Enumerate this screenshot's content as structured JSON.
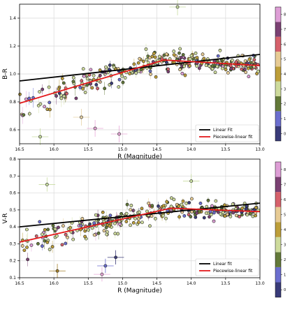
{
  "chart_data": [
    {
      "type": "scatter",
      "title": "",
      "xlabel": "R (Magnitude)",
      "ylabel": "B-R",
      "xlim": [
        16.5,
        13.0
      ],
      "ylim": [
        0.5,
        1.5
      ],
      "x_inverted": true,
      "grid": true,
      "legend_position": "lower-right",
      "xticks": [
        16.5,
        16.0,
        15.5,
        15.0,
        14.5,
        14.0,
        13.5,
        13.0
      ],
      "xtick_labels": [
        "16.5",
        "16.0",
        "15.5",
        "15.0",
        "14.5",
        "14.0",
        "13.5",
        "13.0"
      ],
      "yticks": [
        0.6,
        0.8,
        1.0,
        1.2,
        1.4
      ],
      "ytick_labels": [
        "0.6",
        "0.8",
        "1.0",
        "1.2",
        "1.4"
      ],
      "fits": [
        {
          "name": "Linear Fit",
          "color": "#000000",
          "x": [
            16.5,
            13.0
          ],
          "y": [
            0.95,
            1.14
          ]
        },
        {
          "name": "Piecewise-linear fit",
          "color": "#e41a1c",
          "x": [
            16.5,
            14.4,
            13.0
          ],
          "y": [
            0.79,
            1.1,
            1.06
          ]
        }
      ],
      "scatter_model": {
        "type": "piecewise",
        "x": [
          16.5,
          14.4,
          13.0
        ],
        "y": [
          0.79,
          1.1,
          1.06
        ],
        "scatter": 0.055,
        "n_points": 330
      },
      "outliers": [
        {
          "x": 15.4,
          "y": 0.61,
          "color": "#e8a8d8"
        },
        {
          "x": 15.05,
          "y": 0.57,
          "color": "#e8a8d8"
        },
        {
          "x": 14.2,
          "y": 1.48,
          "color": "#c8dca0"
        },
        {
          "x": 16.2,
          "y": 0.55,
          "color": "#c8dca0"
        },
        {
          "x": 15.6,
          "y": 0.69,
          "color": "#e7d3a8"
        }
      ]
    },
    {
      "type": "scatter",
      "title": "",
      "xlabel": "R (Magnitude)",
      "ylabel": "V-R",
      "xlim": [
        16.5,
        13.0
      ],
      "ylim": [
        0.1,
        0.8
      ],
      "x_inverted": true,
      "grid": true,
      "legend_position": "lower-right",
      "xticks": [
        16.5,
        16.0,
        15.5,
        15.0,
        14.5,
        14.0,
        13.5,
        13.0
      ],
      "xtick_labels": [
        "16.5",
        "16.0",
        "15.5",
        "15.0",
        "14.5",
        "14.0",
        "13.5",
        "13.0"
      ],
      "yticks": [
        0.1,
        0.2,
        0.3,
        0.4,
        0.5,
        0.6,
        0.7,
        0.8
      ],
      "ytick_labels": [
        "0.1",
        "0.2",
        "0.3",
        "0.4",
        "0.5",
        "0.6",
        "0.7",
        "0.8"
      ],
      "fits": [
        {
          "name": "Linear fit",
          "color": "#000000",
          "x": [
            16.5,
            13.0
          ],
          "y": [
            0.4,
            0.54
          ]
        },
        {
          "name": "Piecewise-linear fit",
          "color": "#e41a1c",
          "x": [
            16.5,
            14.3,
            13.0
          ],
          "y": [
            0.31,
            0.51,
            0.49
          ]
        }
      ],
      "scatter_model": {
        "type": "piecewise",
        "x": [
          16.5,
          14.3,
          13.0
        ],
        "y": [
          0.31,
          0.51,
          0.49
        ],
        "scatter": 0.04,
        "n_points": 330
      },
      "outliers": [
        {
          "x": 16.1,
          "y": 0.65,
          "color": "#c8dca0"
        },
        {
          "x": 14.0,
          "y": 0.67,
          "color": "#c8dca0"
        },
        {
          "x": 15.3,
          "y": 0.12,
          "color": "#e8a8d8"
        },
        {
          "x": 15.1,
          "y": 0.22,
          "color": "#3d3d78"
        },
        {
          "x": 15.95,
          "y": 0.14,
          "color": "#a27f2c"
        },
        {
          "x": 15.25,
          "y": 0.17,
          "color": "#6b6ecf"
        }
      ]
    }
  ],
  "colorbar": {
    "ticks": [
      "0",
      "1",
      "2",
      "3",
      "4",
      "5",
      "6",
      "7",
      "8"
    ],
    "colors": [
      "#393b79",
      "#6b6ecf",
      "#637939",
      "#cedb9c",
      "#bd9e39",
      "#e7cb94",
      "#d6616b",
      "#7b4173",
      "#de9ed6"
    ]
  },
  "dominant_classes": [
    "3",
    "4",
    "5",
    "2"
  ]
}
